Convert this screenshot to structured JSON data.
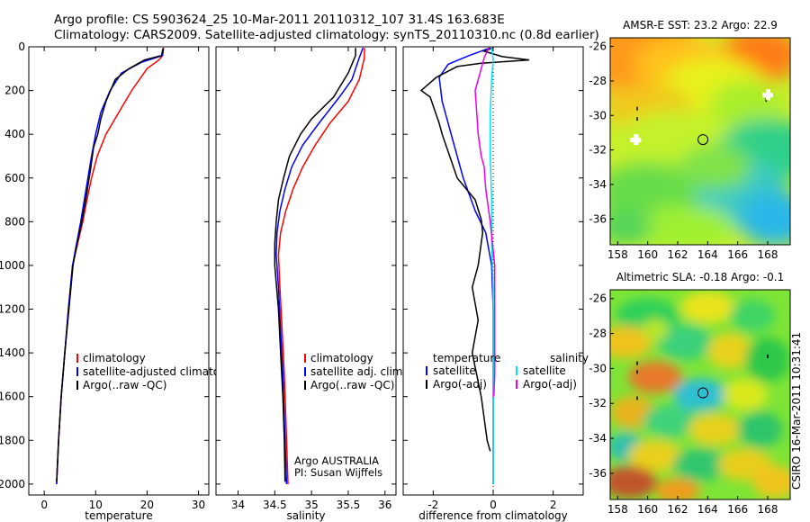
{
  "header": {
    "line1": "Argo profile: CS 5903624_25 10-Mar-2011 20110312_107 31.4S 163.683E",
    "line2": "Climatology: CARS2009. Satellite-adjusted climatology: synTS_20110310.nc (0.8d earlier)"
  },
  "stamp": "CSIRO 16-Mar-2011 10:31:41",
  "colors": {
    "climatology": "#ff0000",
    "satellite": "#0000ff",
    "argo": "#000000",
    "salinity_satellite": "#00e5ee",
    "salinity_argo": "#ee00ee"
  },
  "chart_data": [
    {
      "type": "line",
      "id": "temperature",
      "xlabel": "temperature",
      "ylabel": "",
      "xlim": [
        -3,
        32
      ],
      "ylim": [
        2050,
        0
      ],
      "xticks": [
        0,
        10,
        20,
        30
      ],
      "yticks": [
        0,
        200,
        400,
        600,
        800,
        1000,
        1200,
        1400,
        1600,
        1800,
        2000
      ],
      "legend": {
        "position": "lower-right",
        "entries": [
          "climatology",
          "satellite-adjusted climatology",
          "Argo(..raw -QC)"
        ]
      },
      "series": [
        {
          "name": "climatology",
          "color": "#ff0000",
          "points": [
            [
              23.1,
              5
            ],
            [
              23.0,
              40
            ],
            [
              22.3,
              60
            ],
            [
              20,
              100
            ],
            [
              17,
              200
            ],
            [
              14.5,
              300
            ],
            [
              12,
              400
            ],
            [
              10.3,
              500
            ],
            [
              9.2,
              600
            ],
            [
              8.3,
              700
            ],
            [
              7.5,
              800
            ],
            [
              6.5,
              900
            ],
            [
              5.5,
              1000
            ],
            [
              4.7,
              1200
            ],
            [
              4,
              1400
            ],
            [
              3.3,
              1600
            ],
            [
              2.8,
              1800
            ],
            [
              2.4,
              2000
            ]
          ]
        },
        {
          "name": "satellite-adjusted climatology",
          "color": "#0000ff",
          "points": [
            [
              23.2,
              5
            ],
            [
              23.0,
              40
            ],
            [
              19,
              70
            ],
            [
              15,
              120
            ],
            [
              12.8,
              200
            ],
            [
              11,
              300
            ],
            [
              10,
              400
            ],
            [
              9.2,
              500
            ],
            [
              8.5,
              600
            ],
            [
              7.8,
              700
            ],
            [
              7.1,
              800
            ],
            [
              6.3,
              900
            ],
            [
              5.5,
              1000
            ],
            [
              4.7,
              1200
            ],
            [
              4,
              1400
            ],
            [
              3.3,
              1600
            ],
            [
              2.8,
              1800
            ],
            [
              2.4,
              2000
            ]
          ]
        },
        {
          "name": "Argo(..raw -QC)",
          "color": "#000000",
          "points": [
            [
              23.1,
              10
            ],
            [
              22.8,
              40
            ],
            [
              19.5,
              60
            ],
            [
              16.5,
              100
            ],
            [
              13.8,
              150
            ],
            [
              12,
              250
            ],
            [
              11,
              330
            ],
            [
              10.4,
              400
            ],
            [
              9.6,
              460
            ],
            [
              9.0,
              560
            ],
            [
              8.2,
              680
            ],
            [
              7.3,
              800
            ],
            [
              6.4,
              900
            ],
            [
              5.6,
              1000
            ],
            [
              4.8,
              1200
            ],
            [
              4,
              1400
            ],
            [
              3.3,
              1600
            ],
            [
              2.8,
              1800
            ],
            [
              2.4,
              1990
            ]
          ]
        }
      ]
    },
    {
      "type": "line",
      "id": "salinity",
      "xlabel": "salinity",
      "ylabel": "",
      "xlim": [
        33.7,
        36.15
      ],
      "ylim": [
        2050,
        0
      ],
      "xticks": [
        34,
        34.5,
        35,
        35.5,
        36
      ],
      "legend": {
        "position": "lower-right",
        "entries": [
          "climatology",
          "satellite adj. clim.",
          "Argo(..raw -QC)"
        ]
      },
      "annotation": [
        "Argo AUSTRALIA",
        "PI: Susan Wijffels"
      ],
      "series": [
        {
          "name": "climatology",
          "color": "#ff0000",
          "points": [
            [
              35.72,
              5
            ],
            [
              35.72,
              50
            ],
            [
              35.65,
              150
            ],
            [
              35.5,
              250
            ],
            [
              35.25,
              350
            ],
            [
              35.05,
              450
            ],
            [
              34.88,
              550
            ],
            [
              34.75,
              650
            ],
            [
              34.65,
              750
            ],
            [
              34.58,
              850
            ],
            [
              34.55,
              950
            ],
            [
              34.57,
              1100
            ],
            [
              34.6,
              1300
            ],
            [
              34.63,
              1500
            ],
            [
              34.65,
              1700
            ],
            [
              34.67,
              1900
            ],
            [
              34.68,
              2000
            ]
          ]
        },
        {
          "name": "satellite adj. clim.",
          "color": "#0000ff",
          "points": [
            [
              35.7,
              5
            ],
            [
              35.65,
              50
            ],
            [
              35.55,
              150
            ],
            [
              35.38,
              230
            ],
            [
              35.1,
              350
            ],
            [
              34.88,
              450
            ],
            [
              34.73,
              550
            ],
            [
              34.64,
              650
            ],
            [
              34.57,
              750
            ],
            [
              34.53,
              850
            ],
            [
              34.52,
              950
            ],
            [
              34.55,
              1100
            ],
            [
              34.58,
              1300
            ],
            [
              34.61,
              1500
            ],
            [
              34.63,
              1700
            ],
            [
              34.65,
              1900
            ],
            [
              34.66,
              2000
            ]
          ]
        },
        {
          "name": "Argo(..raw -QC)",
          "color": "#000000",
          "points": [
            [
              35.6,
              5
            ],
            [
              35.6,
              40
            ],
            [
              35.5,
              120
            ],
            [
              35.3,
              230
            ],
            [
              35.0,
              330
            ],
            [
              34.85,
              400
            ],
            [
              34.7,
              500
            ],
            [
              34.62,
              600
            ],
            [
              34.55,
              700
            ],
            [
              34.52,
              800
            ],
            [
              34.5,
              900
            ],
            [
              34.5,
              1000
            ],
            [
              34.55,
              1200
            ],
            [
              34.58,
              1400
            ],
            [
              34.61,
              1600
            ],
            [
              34.63,
              1800
            ],
            [
              34.64,
              1990
            ]
          ]
        }
      ]
    },
    {
      "type": "line",
      "id": "difference",
      "xlabel": "difference from climatology",
      "ylabel": "",
      "xlim": [
        -3,
        3
      ],
      "ylim": [
        2050,
        0
      ],
      "xticks": [
        -2,
        0,
        2
      ],
      "legend": {
        "position": "lower-right",
        "headers": [
          "temperature",
          "salinity"
        ],
        "entries": [
          "satellite",
          "Argo(-adj)",
          "satellite",
          "Argo(-adj)"
        ]
      },
      "series": [
        {
          "name": "temperature satellite",
          "color": "#0000ff",
          "points": [
            [
              -0.1,
              5
            ],
            [
              -0.8,
              40
            ],
            [
              -1.5,
              80
            ],
            [
              -1.8,
              140
            ],
            [
              -1.7,
              250
            ],
            [
              -1.4,
              400
            ],
            [
              -1.0,
              600
            ],
            [
              -0.6,
              750
            ],
            [
              -0.25,
              850
            ],
            [
              -0.05,
              1000
            ],
            [
              0,
              1200
            ],
            [
              0,
              2000
            ]
          ]
        },
        {
          "name": "temperature Argo(-adj)",
          "color": "#000000",
          "points": [
            [
              0,
              5
            ],
            [
              -0.3,
              20
            ],
            [
              0.3,
              45
            ],
            [
              1.2,
              60
            ],
            [
              -0.4,
              75
            ],
            [
              -1.2,
              90
            ],
            [
              -1.9,
              140
            ],
            [
              -2.4,
              200
            ],
            [
              -2.1,
              230
            ],
            [
              -1.8,
              350
            ],
            [
              -1.7,
              400
            ],
            [
              -1.5,
              480
            ],
            [
              -1.2,
              600
            ],
            [
              -0.9,
              650
            ],
            [
              -0.6,
              700
            ],
            [
              -0.4,
              790
            ],
            [
              -0.35,
              850
            ],
            [
              -0.5,
              1000
            ],
            [
              -0.7,
              1100
            ],
            [
              -0.5,
              1250
            ],
            [
              -0.7,
              1400
            ],
            [
              -0.4,
              1600
            ],
            [
              -0.2,
              1800
            ],
            [
              -0.1,
              1850
            ]
          ]
        },
        {
          "name": "salinity satellite",
          "color": "#00e5ee",
          "points": [
            [
              -0.05,
              5
            ],
            [
              0,
              60
            ],
            [
              -0.05,
              150
            ],
            [
              -0.1,
              300
            ],
            [
              -0.1,
              500
            ],
            [
              -0.05,
              700
            ],
            [
              -0.05,
              900
            ],
            [
              0,
              1100
            ],
            [
              0,
              2000
            ]
          ]
        },
        {
          "name": "salinity Argo(-adj)",
          "color": "#ee00ee",
          "points": [
            [
              -0.15,
              5
            ],
            [
              -0.3,
              50
            ],
            [
              -0.4,
              100
            ],
            [
              -0.6,
              200
            ],
            [
              -0.55,
              300
            ],
            [
              -0.5,
              400
            ],
            [
              -0.4,
              500
            ],
            [
              -0.3,
              550
            ],
            [
              -0.25,
              650
            ],
            [
              -0.1,
              800
            ],
            [
              0.05,
              1000
            ],
            [
              0.05,
              1300
            ],
            [
              0.05,
              1500
            ],
            [
              0.02,
              1600
            ]
          ]
        }
      ]
    },
    {
      "type": "heatmap",
      "id": "sst-map",
      "title": "AMSR-E SST: 23.2 Argo: 22.9",
      "xlim": [
        157.5,
        169.5
      ],
      "ylim": [
        -37.5,
        -25.5
      ],
      "xticks": [
        158,
        160,
        162,
        164,
        166,
        168
      ],
      "yticks": [
        -26,
        -28,
        -30,
        -32,
        -34,
        -36
      ],
      "marker": {
        "lon": 163.683,
        "lat": -31.4
      }
    },
    {
      "type": "heatmap",
      "id": "sla-map",
      "title": "Altimetric SLA: -0.18 Argo: -0.1",
      "xlim": [
        157.5,
        169.5
      ],
      "ylim": [
        -37.5,
        -25.5
      ],
      "xticks": [
        158,
        160,
        162,
        164,
        166,
        168
      ],
      "yticks": [
        -26,
        -28,
        -30,
        -32,
        -34,
        -36
      ],
      "marker": {
        "lon": 163.683,
        "lat": -31.4
      }
    }
  ]
}
